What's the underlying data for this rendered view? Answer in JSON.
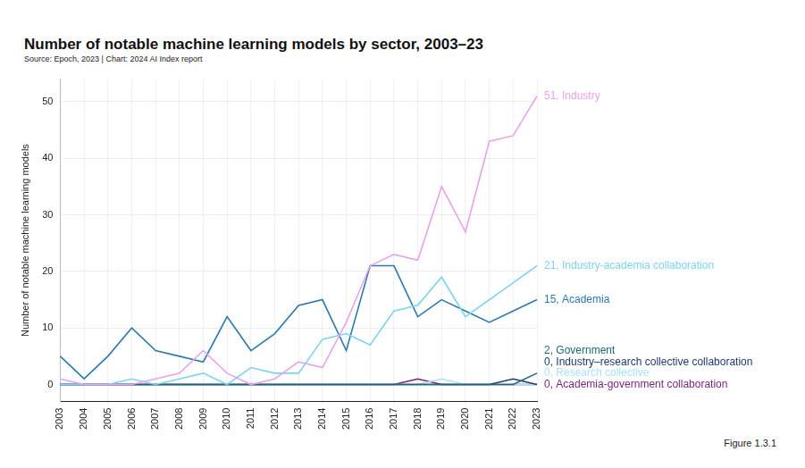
{
  "chart_data": {
    "type": "line",
    "title": "Number of notable machine learning models by sector, 2003–23",
    "subtitle": "Source: Epoch, 2023 | Chart: 2024 AI Index report",
    "y_label": "Number of notable machine learning models",
    "note": "Figure 1.3.1",
    "categories": [
      "2003",
      "2004",
      "2005",
      "2006",
      "2007",
      "2008",
      "2009",
      "2010",
      "2011",
      "2012",
      "2013",
      "2014",
      "2015",
      "2016",
      "2017",
      "2018",
      "2019",
      "2020",
      "2021",
      "2022",
      "2023"
    ],
    "series": [
      {
        "name": "Industry",
        "label": "51, Industry",
        "color": "#e7a3ea",
        "values": [
          1,
          0,
          0,
          0,
          1,
          2,
          6,
          2,
          0,
          1,
          4,
          3,
          11,
          21,
          23,
          22,
          35,
          27,
          43,
          44,
          51
        ]
      },
      {
        "name": "Industry-academia collaboration",
        "label": "21, Industry-academia collaboration",
        "color": "#7dd3ee",
        "values": [
          0,
          0,
          0,
          1,
          0,
          1,
          2,
          0,
          3,
          2,
          2,
          8,
          9,
          7,
          13,
          14,
          19,
          12,
          15,
          18,
          21
        ]
      },
      {
        "name": "Academia",
        "label": "15, Academia",
        "color": "#2a7ab0",
        "values": [
          5,
          1,
          5,
          10,
          6,
          5,
          4,
          12,
          6,
          9,
          14,
          15,
          6,
          21,
          21,
          12,
          15,
          13,
          11,
          13,
          15
        ]
      },
      {
        "name": "Government",
        "label": "2, Government",
        "color": "#1d6a73",
        "values": [
          0,
          0,
          0,
          0,
          0,
          0,
          0,
          0,
          0,
          0,
          0,
          0,
          0,
          0,
          0,
          0,
          0,
          0,
          0,
          0,
          2
        ]
      },
      {
        "name": "Industry–research collective collaboration",
        "label": "0, Industry–research collective collaboration",
        "color": "#1e3a6e",
        "values": [
          0,
          0,
          0,
          0,
          0,
          0,
          0,
          0,
          0,
          0,
          0,
          0,
          0,
          0,
          0,
          0,
          0,
          0,
          0,
          1,
          0
        ]
      },
      {
        "name": "Research collective",
        "label": "0, Research collective",
        "color": "#a8e4f4",
        "values": [
          0,
          0,
          0,
          0,
          0,
          0,
          0,
          0,
          0,
          0,
          0,
          0,
          0,
          0,
          0,
          0,
          1,
          0,
          0,
          0,
          0
        ]
      },
      {
        "name": "Academia-government collaboration",
        "label": "0, Academia-government collaboration",
        "color": "#7a1f7e",
        "values": [
          0,
          0,
          0,
          0,
          0,
          0,
          0,
          0,
          0,
          0,
          0,
          0,
          0,
          0,
          0,
          1,
          0,
          0,
          0,
          0,
          0
        ]
      }
    ],
    "ylim": [
      -3,
      54
    ],
    "yticks": [
      0,
      10,
      20,
      30,
      40,
      50
    ],
    "grid": true
  }
}
